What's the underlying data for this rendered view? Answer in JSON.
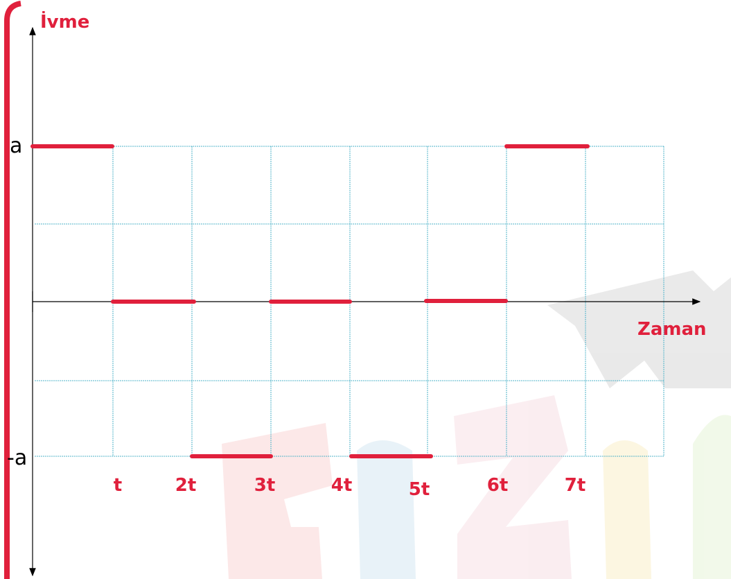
{
  "y_axis": {
    "label": "İvme",
    "ticks": [
      "a",
      "-a"
    ]
  },
  "x_axis": {
    "label": "Zaman",
    "ticks": [
      "t",
      "2t",
      "3t",
      "4t",
      "5t",
      "6t",
      "7t"
    ]
  }
}
